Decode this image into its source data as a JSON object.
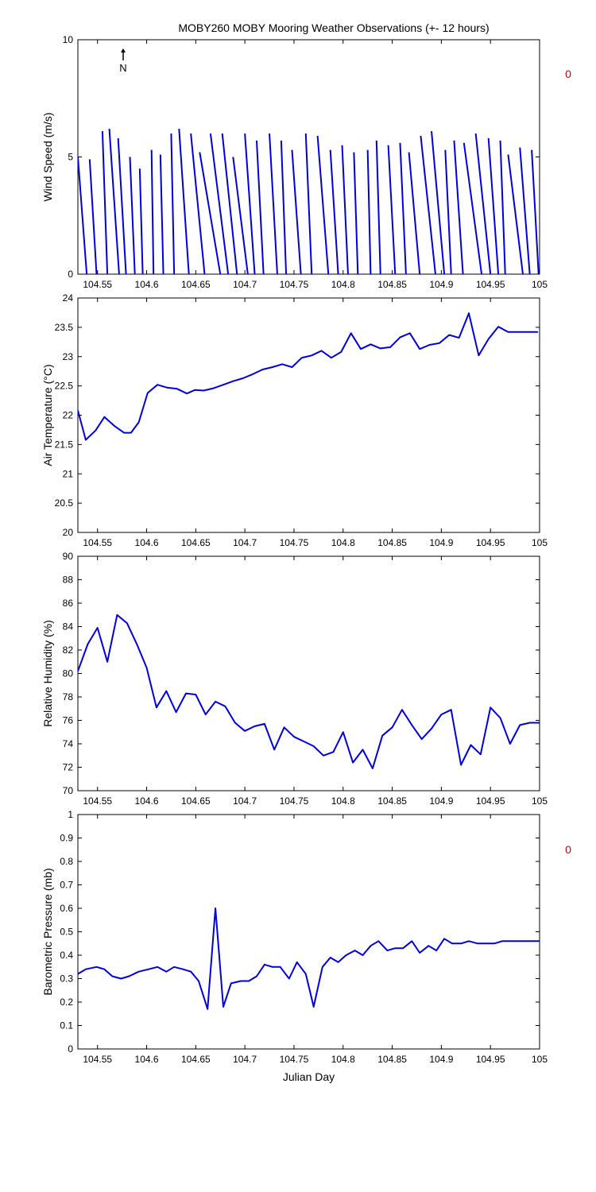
{
  "page_title": "MOBY260 MOBY Mooring Weather Observations (+- 12 hours)",
  "side_marks": {
    "wind": "0",
    "pressure": "0",
    "color": "#cc0000"
  },
  "north_label": "N",
  "colors": {
    "series": "#0000dd",
    "axis": "#000000",
    "background": "#ffffff"
  },
  "chart_data": [
    {
      "type": "line",
      "id": "wind",
      "subtype": "wind-vector",
      "ylabel": "Wind Speed (m/s)",
      "xlabel": "",
      "xlim": [
        104.53,
        105.0
      ],
      "ylim": [
        0,
        10
      ],
      "xticks": [
        104.55,
        104.6,
        104.65,
        104.7,
        104.75,
        104.8,
        104.85,
        104.9,
        104.95,
        105
      ],
      "xtick_labels": [
        "104.55",
        "104.6",
        "104.65",
        "104.7",
        "104.75",
        "104.8",
        "104.85",
        "104.9",
        "104.95",
        "105"
      ],
      "yticks": [
        0,
        5,
        10
      ],
      "ytick_labels": [
        "0",
        "5",
        "10"
      ],
      "grid": false,
      "x": [
        104.53,
        104.542,
        104.555,
        104.562,
        104.571,
        104.583,
        104.593,
        104.605,
        104.614,
        104.625,
        104.633,
        104.645,
        104.654,
        104.665,
        104.677,
        104.688,
        104.7,
        104.712,
        104.725,
        104.737,
        104.748,
        104.762,
        104.774,
        104.787,
        104.799,
        104.811,
        104.825,
        104.834,
        104.846,
        104.858,
        104.867,
        104.879,
        104.89,
        104.904,
        104.913,
        104.923,
        104.935,
        104.948,
        104.96,
        104.968,
        104.98,
        104.992
      ],
      "speed": [
        5.0,
        4.9,
        6.1,
        6.2,
        5.8,
        5.0,
        4.5,
        5.3,
        5.1,
        6.0,
        6.2,
        6.0,
        5.2,
        6.0,
        6.0,
        5.0,
        6.0,
        5.7,
        6.0,
        5.7,
        5.3,
        6.0,
        5.9,
        5.3,
        5.5,
        5.2,
        5.3,
        5.7,
        5.5,
        5.6,
        5.2,
        5.9,
        6.1,
        5.3,
        5.7,
        5.6,
        6.0,
        5.8,
        5.7,
        5.1,
        5.4,
        5.3
      ],
      "vector_tip_x": [
        104.539,
        104.549,
        104.56,
        104.572,
        104.579,
        104.588,
        104.596,
        104.607,
        104.617,
        104.628,
        104.643,
        104.659,
        104.675,
        104.683,
        104.692,
        104.703,
        104.71,
        104.719,
        104.733,
        104.742,
        104.757,
        104.768,
        104.785,
        104.795,
        104.805,
        104.815,
        104.828,
        104.838,
        104.853,
        104.864,
        104.878,
        104.894,
        104.903,
        104.91,
        104.922,
        104.941,
        104.95,
        104.958,
        104.965,
        104.983,
        104.99,
        104.999
      ],
      "north_indicator": true
    },
    {
      "type": "line",
      "id": "air-temp",
      "ylabel": "Air Temperature (°C)",
      "xlabel": "",
      "xlim": [
        104.53,
        105.0
      ],
      "ylim": [
        20,
        24
      ],
      "xticks": [
        104.55,
        104.6,
        104.65,
        104.7,
        104.75,
        104.8,
        104.85,
        104.9,
        104.95,
        105
      ],
      "xtick_labels": [
        "104.55",
        "104.6",
        "104.65",
        "104.7",
        "104.75",
        "104.8",
        "104.85",
        "104.9",
        "104.95",
        "105"
      ],
      "yticks": [
        20,
        20.5,
        21,
        21.5,
        22,
        22.5,
        23,
        23.5,
        24
      ],
      "ytick_labels": [
        "20",
        "20.5",
        "21",
        "21.5",
        "22",
        "22.5",
        "23",
        "23.5",
        "24"
      ],
      "grid": false,
      "x": [
        104.53,
        104.538,
        104.548,
        104.557,
        104.567,
        104.577,
        104.584,
        104.592,
        104.601,
        104.611,
        104.621,
        104.631,
        104.641,
        104.649,
        104.658,
        104.668,
        104.678,
        104.688,
        104.698,
        104.708,
        104.718,
        104.728,
        104.738,
        104.748,
        104.758,
        104.768,
        104.778,
        104.788,
        104.798,
        104.808,
        104.818,
        104.828,
        104.838,
        104.848,
        104.858,
        104.868,
        104.878,
        104.888,
        104.898,
        104.908,
        104.918,
        104.928,
        104.938,
        104.948,
        104.958,
        104.968,
        104.978,
        104.988,
        104.998
      ],
      "y": [
        22.08,
        21.58,
        21.74,
        21.97,
        21.82,
        21.7,
        21.7,
        21.88,
        22.38,
        22.52,
        22.47,
        22.45,
        22.37,
        22.43,
        22.42,
        22.46,
        22.52,
        22.58,
        22.63,
        22.7,
        22.78,
        22.82,
        22.87,
        22.82,
        22.98,
        23.02,
        23.1,
        22.98,
        23.08,
        23.4,
        23.13,
        23.21,
        23.14,
        23.16,
        23.33,
        23.4,
        23.13,
        23.2,
        23.23,
        23.37,
        23.32,
        23.74,
        23.02,
        23.3,
        23.51,
        23.42,
        23.42,
        23.42,
        23.42
      ],
      "y_note_shape": "temperature"
    },
    {
      "type": "line",
      "id": "humidity",
      "ylabel": "Relative Humidity (%)",
      "xlabel": "",
      "xlim": [
        104.53,
        105.0
      ],
      "ylim": [
        70,
        90
      ],
      "xticks": [
        104.55,
        104.6,
        104.65,
        104.7,
        104.75,
        104.8,
        104.85,
        104.9,
        104.95,
        105
      ],
      "xtick_labels": [
        "104.55",
        "104.6",
        "104.65",
        "104.7",
        "104.75",
        "104.8",
        "104.85",
        "104.9",
        "104.95",
        "105"
      ],
      "yticks": [
        70,
        72,
        74,
        76,
        78,
        80,
        82,
        84,
        86,
        88,
        90
      ],
      "ytick_labels": [
        "70",
        "72",
        "74",
        "76",
        "78",
        "80",
        "82",
        "84",
        "86",
        "88",
        "90"
      ],
      "grid": false,
      "x": [
        104.53,
        104.54,
        104.55,
        104.56,
        104.57,
        104.58,
        104.59,
        104.6,
        104.61,
        104.62,
        104.63,
        104.64,
        104.65,
        104.66,
        104.67,
        104.68,
        104.69,
        104.7,
        104.71,
        104.72,
        104.73,
        104.74,
        104.75,
        104.76,
        104.77,
        104.78,
        104.79,
        104.8,
        104.81,
        104.82,
        104.83,
        104.84,
        104.85,
        104.86,
        104.87,
        104.88,
        104.89,
        104.9,
        104.91,
        104.92,
        104.93,
        104.94,
        104.95,
        104.96,
        104.97,
        104.98,
        104.99,
        105.0
      ],
      "y": [
        80.2,
        82.5,
        83.9,
        81.0,
        85.0,
        84.3,
        82.5,
        80.5,
        77.1,
        78.5,
        76.7,
        78.3,
        78.2,
        76.5,
        77.6,
        77.2,
        75.8,
        75.1,
        75.5,
        75.7,
        73.5,
        75.4,
        74.6,
        74.2,
        73.8,
        73.0,
        73.3,
        75.0,
        72.4,
        73.5,
        71.9,
        74.7,
        75.4,
        76.9,
        75.6,
        74.4,
        75.3,
        76.5,
        76.9,
        72.2,
        73.9,
        73.1,
        77.1,
        76.2,
        74.0,
        75.6,
        75.8,
        75.8
      ]
    },
    {
      "type": "line",
      "id": "pressure",
      "ylabel": "Barometric Pressure (mb)",
      "xlabel": "Julian Day",
      "xlim": [
        104.53,
        105.0
      ],
      "ylim": [
        0,
        1
      ],
      "xticks": [
        104.55,
        104.6,
        104.65,
        104.7,
        104.75,
        104.8,
        104.85,
        104.9,
        104.95,
        105
      ],
      "xtick_labels": [
        "104.55",
        "104.6",
        "104.65",
        "104.7",
        "104.75",
        "104.8",
        "104.85",
        "104.9",
        "104.95",
        "105"
      ],
      "yticks": [
        0,
        0.1,
        0.2,
        0.3,
        0.4,
        0.5,
        0.6,
        0.7,
        0.8,
        0.9,
        1
      ],
      "ytick_labels": [
        "0",
        "0.1",
        "0.2",
        "0.3",
        "0.4",
        "0.5",
        "0.6",
        "0.7",
        "0.8",
        "0.9",
        "1"
      ],
      "grid": false,
      "x": [
        104.53,
        104.538,
        104.549,
        104.557,
        104.565,
        104.574,
        104.582,
        104.592,
        104.602,
        104.611,
        104.62,
        104.628,
        104.637,
        104.645,
        104.653,
        104.662,
        104.67,
        104.678,
        104.686,
        104.696,
        104.704,
        104.712,
        104.72,
        104.728,
        104.736,
        104.745,
        104.753,
        104.762,
        104.77,
        104.779,
        104.787,
        104.795,
        104.803,
        104.812,
        104.82,
        104.828,
        104.836,
        104.845,
        104.853,
        104.861,
        104.87,
        104.878,
        104.887,
        104.895,
        104.903,
        104.911,
        104.92,
        104.928,
        104.937,
        104.945,
        104.954,
        104.962,
        104.97,
        104.979,
        104.987,
        104.995,
        105.0
      ],
      "y": [
        0.32,
        0.34,
        0.35,
        0.34,
        0.31,
        0.3,
        0.31,
        0.33,
        0.34,
        0.35,
        0.33,
        0.35,
        0.34,
        0.33,
        0.29,
        0.17,
        0.6,
        0.18,
        0.28,
        0.29,
        0.29,
        0.31,
        0.36,
        0.35,
        0.35,
        0.3,
        0.37,
        0.32,
        0.18,
        0.35,
        0.39,
        0.37,
        0.4,
        0.42,
        0.4,
        0.44,
        0.46,
        0.42,
        0.43,
        0.43,
        0.46,
        0.41,
        0.44,
        0.42,
        0.47,
        0.45,
        0.45,
        0.46,
        0.45,
        0.45,
        0.45,
        0.46,
        0.46,
        0.46,
        0.46,
        0.46,
        0.46
      ]
    }
  ]
}
